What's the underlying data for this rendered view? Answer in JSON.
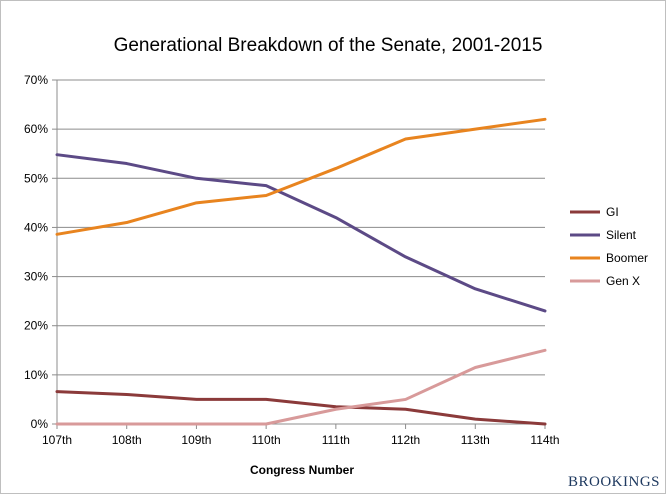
{
  "chart_data": {
    "type": "line",
    "title": "Generational Breakdown of the Senate, 2001-2015",
    "xlabel": "Congress Number",
    "ylabel": "",
    "categories": [
      "107th",
      "108th",
      "109th",
      "110th",
      "111th",
      "112th",
      "113th",
      "114th"
    ],
    "ylim": [
      0,
      70
    ],
    "yticks": [
      0,
      10,
      20,
      30,
      40,
      50,
      60,
      70
    ],
    "ytick_labels": [
      "0%",
      "10%",
      "20%",
      "30%",
      "40%",
      "50%",
      "60%",
      "70%"
    ],
    "grid": "horizontal",
    "legend_position": "right",
    "series": [
      {
        "name": "GI",
        "color": "#8b3a3a",
        "values": [
          6.6,
          6.0,
          5.0,
          5.0,
          3.5,
          3.0,
          1.0,
          0.0
        ]
      },
      {
        "name": "Silent",
        "color": "#5c4a86",
        "values": [
          54.8,
          53.0,
          50.0,
          48.5,
          42.0,
          34.0,
          27.5,
          23.0
        ]
      },
      {
        "name": "Boomer",
        "color": "#e8841f",
        "values": [
          38.6,
          41.0,
          45.0,
          46.5,
          52.0,
          58.0,
          60.0,
          62.0
        ]
      },
      {
        "name": "Gen X",
        "color": "#d89a9a",
        "values": [
          0.0,
          0.0,
          0.0,
          0.0,
          3.0,
          5.0,
          11.5,
          15.0
        ]
      }
    ]
  },
  "footer": {
    "brand": "BROOKINGS"
  }
}
